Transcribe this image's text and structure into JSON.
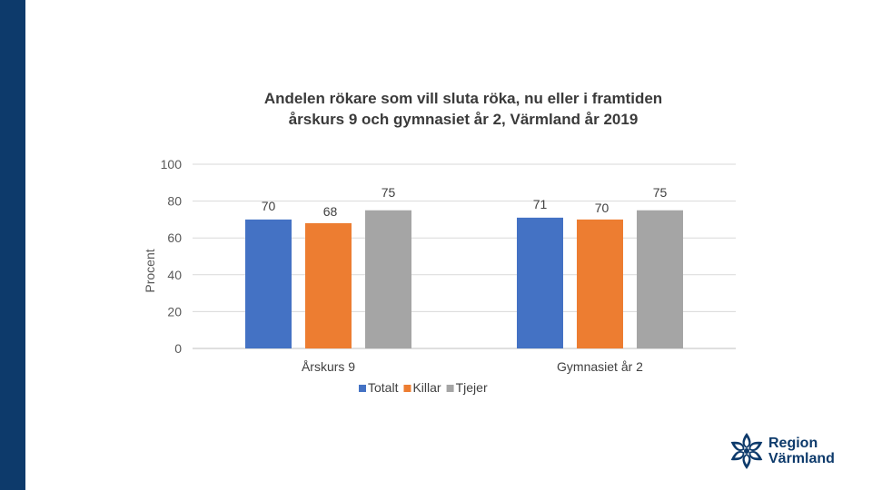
{
  "chart_data": {
    "type": "bar",
    "title_lines": [
      "Andelen rökare som vill sluta röka, nu eller i framtiden",
      "årskurs 9 och gymnasiet år 2, Värmland år 2019"
    ],
    "categories": [
      "Årskurs 9",
      "Gymnasiet år 2"
    ],
    "series": [
      {
        "name": "Totalt",
        "color": "#4472c4",
        "values": [
          70,
          71
        ]
      },
      {
        "name": "Killar",
        "color": "#ed7d31",
        "values": [
          68,
          70
        ]
      },
      {
        "name": "Tjejer",
        "color": "#a5a5a5",
        "values": [
          75,
          75
        ]
      }
    ],
    "ylabel": "Procent",
    "xlabel": "",
    "ylim": [
      0,
      100
    ],
    "yticks": [
      0,
      20,
      40,
      60,
      80,
      100
    ],
    "grid": true,
    "legend_position": "bottom"
  },
  "logo": {
    "line1": "Region",
    "line2": "Värmland",
    "icon": "flower-logo-icon",
    "color": "#0d3a6b"
  },
  "sidebar_color": "#0d3a6b"
}
